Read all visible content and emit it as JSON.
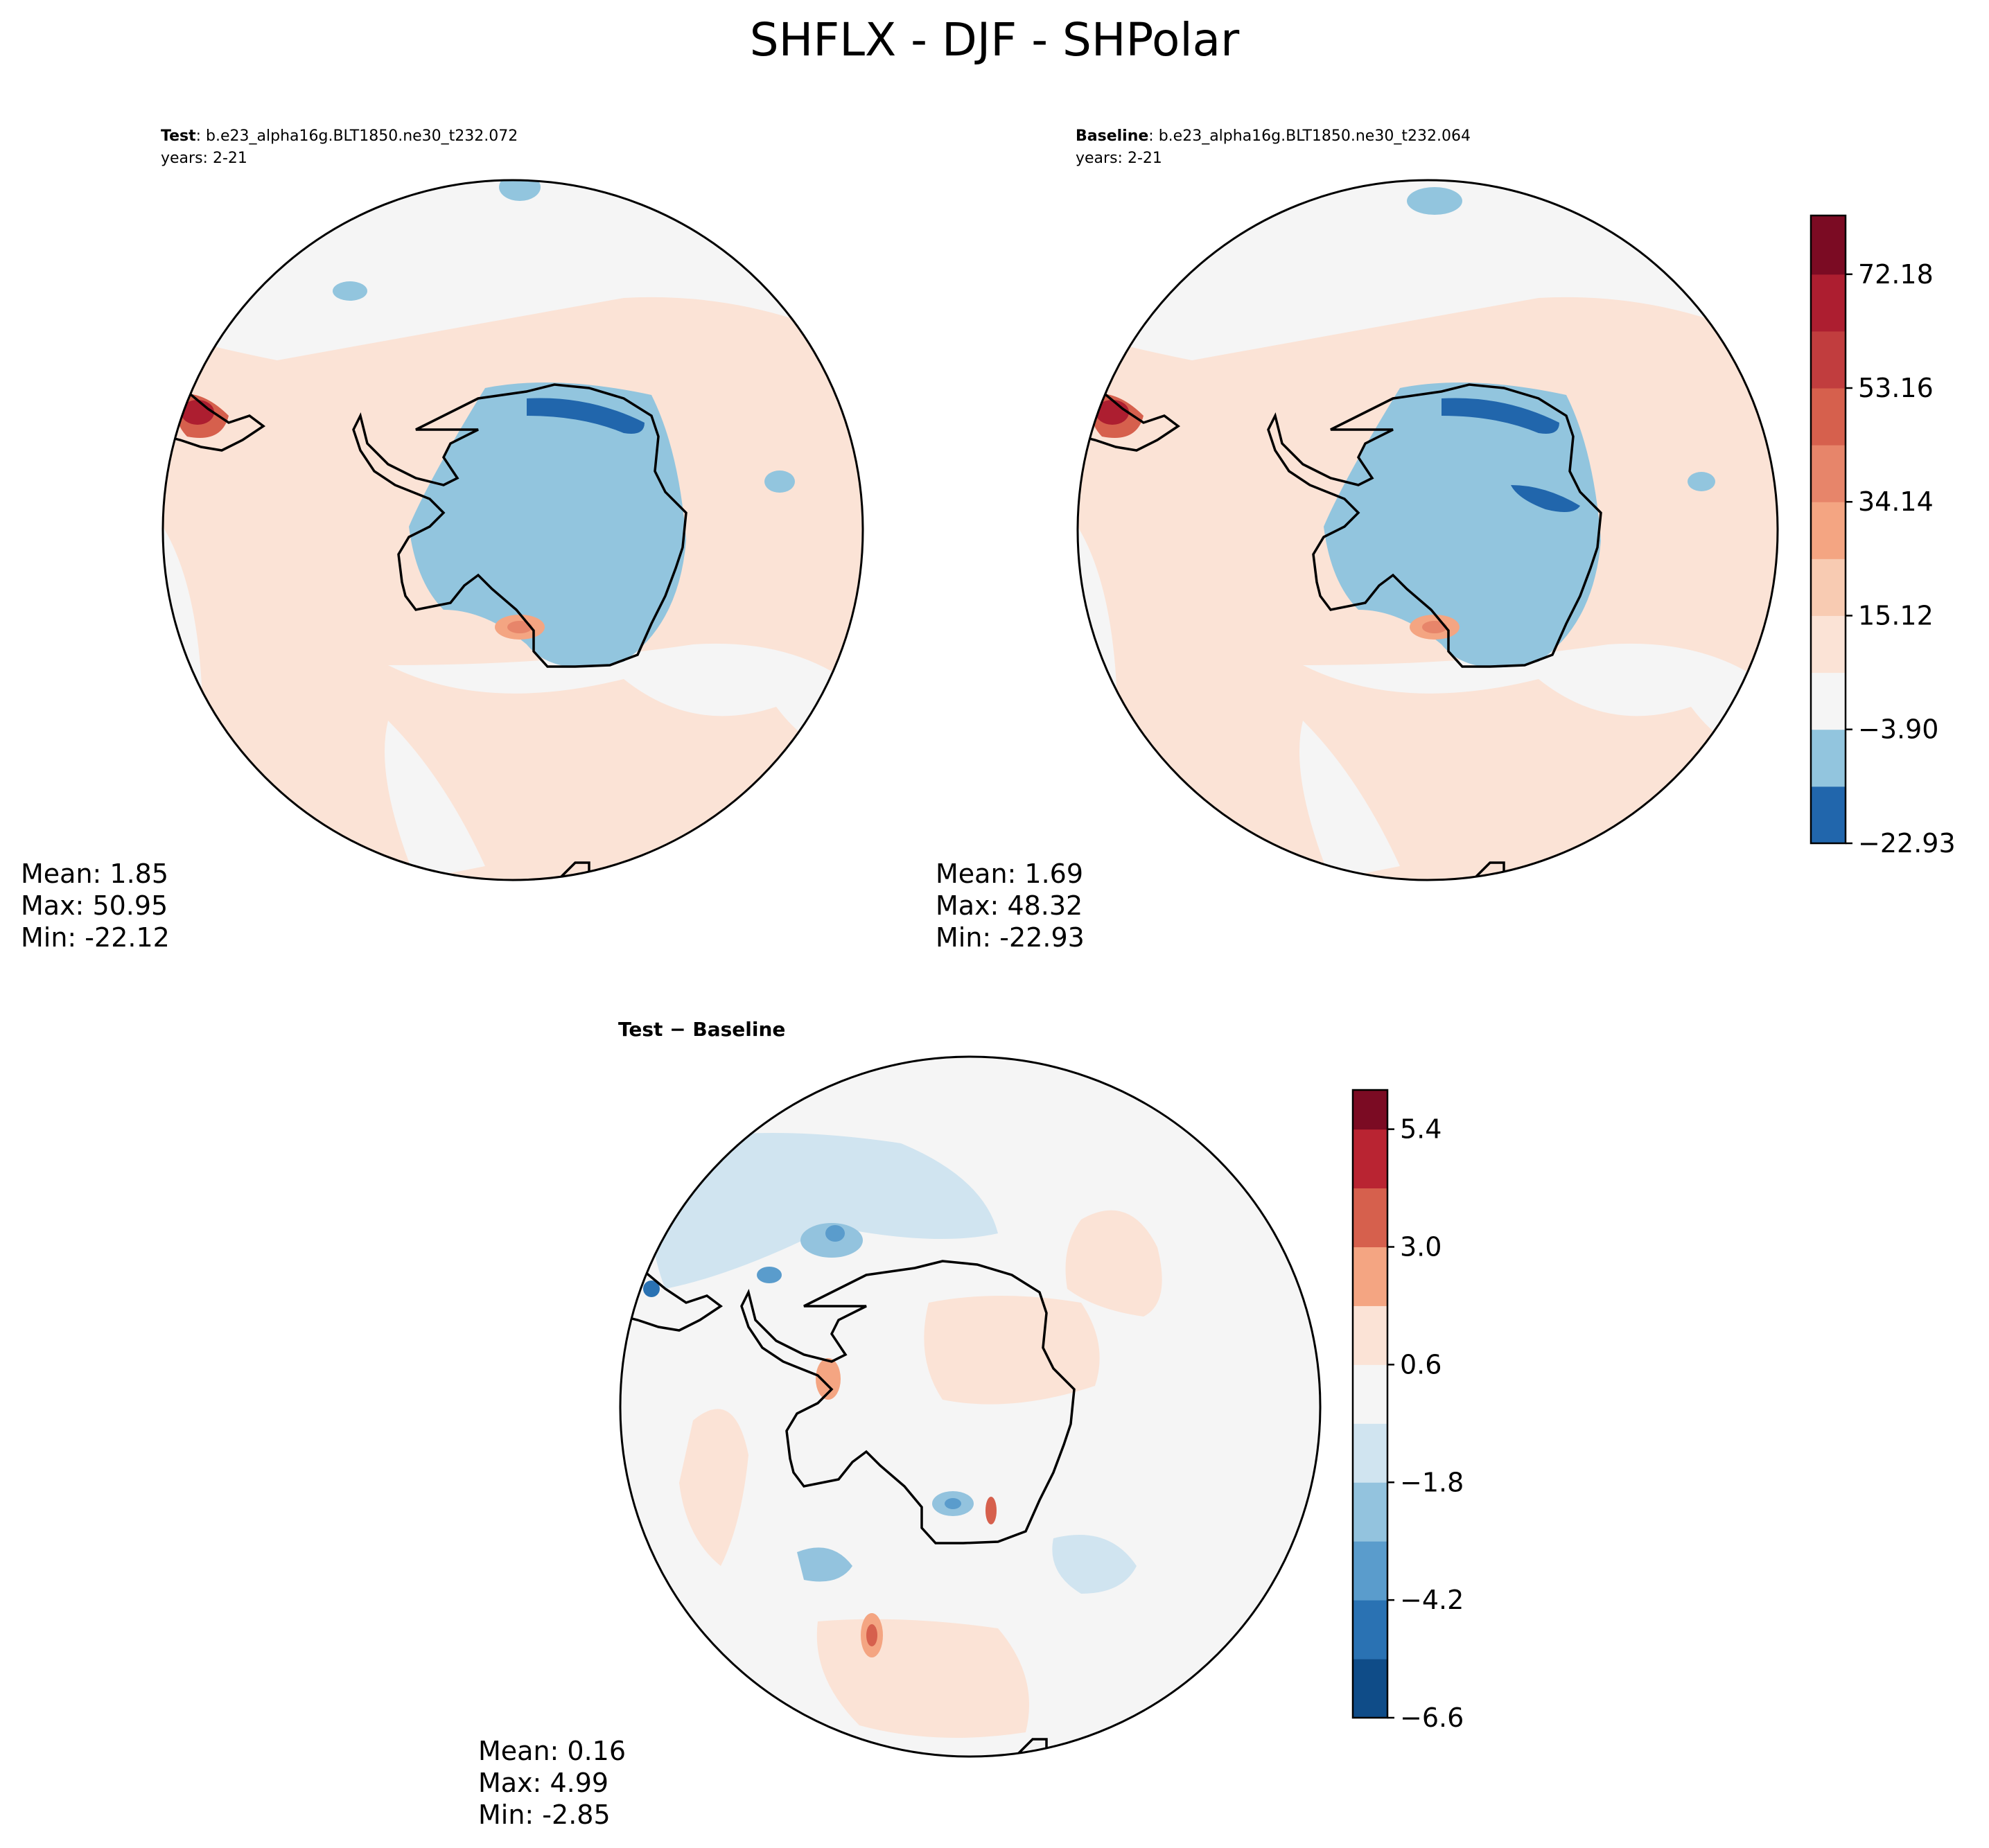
{
  "chart_data": {
    "type": "heatmap",
    "title": "SHFLX - DJF - SHPolar",
    "panels": [
      {
        "id": "test",
        "label": "Test",
        "case": ": b.e23_alpha16g.BLT1850.ne30_t232.072",
        "years": "years: 2-21",
        "stats": {
          "mean": "Mean:  1.85",
          "max": "Max: 50.95",
          "min": "Min: -22.12"
        }
      },
      {
        "id": "baseline",
        "label": "Baseline",
        "case": ": b.e23_alpha16g.BLT1850.ne30_t232.064",
        "years": "years: 2-21",
        "stats": {
          "mean": "Mean:  1.69",
          "max": "Max: 48.32",
          "min": "Min: -22.93"
        }
      },
      {
        "id": "diff",
        "label": "Test − Baseline",
        "stats": {
          "mean": "Mean:  0.16",
          "max": "Max:  4.99",
          "min": "Min: -2.85"
        }
      }
    ],
    "colorbar_main": {
      "range": [
        -22.93,
        82.0
      ],
      "ticks": [
        "72.18",
        "53.16",
        "34.14",
        "15.12",
        "−3.90",
        "−22.93"
      ],
      "tick_values": [
        72.18,
        53.16,
        34.14,
        15.12,
        -3.9,
        -22.93
      ],
      "levels": [
        -22.93,
        -13.42,
        -3.9,
        5.61,
        15.12,
        24.63,
        34.14,
        43.65,
        53.16,
        62.67,
        72.18,
        82.0
      ],
      "colors": [
        "#2166ac",
        "#92c5de",
        "#f5f5f5",
        "#fbe3d6",
        "#f8cbb2",
        "#f4a582",
        "#e7856a",
        "#d6604d",
        "#c13d3e",
        "#ad1e30",
        "#7b0b23"
      ]
    },
    "colorbar_diff": {
      "range": [
        -6.6,
        6.2
      ],
      "ticks": [
        "5.4",
        "3.0",
        "0.6",
        "−1.8",
        "−4.2",
        "−6.6"
      ],
      "tick_values": [
        5.4,
        3.0,
        0.6,
        -1.8,
        -4.2,
        -6.6
      ],
      "levels": [
        -6.6,
        -5.4,
        -4.2,
        -3.0,
        -1.8,
        -0.6,
        0.6,
        1.8,
        3.0,
        4.2,
        5.4,
        6.2
      ],
      "colors": [
        "#0f4c88",
        "#2a72b3",
        "#5a9ccc",
        "#93c3de",
        "#d0e4f0",
        "#f5f5f5",
        "#fbe3d6",
        "#f4a582",
        "#d6604d",
        "#b92432",
        "#7b0b23"
      ]
    }
  }
}
